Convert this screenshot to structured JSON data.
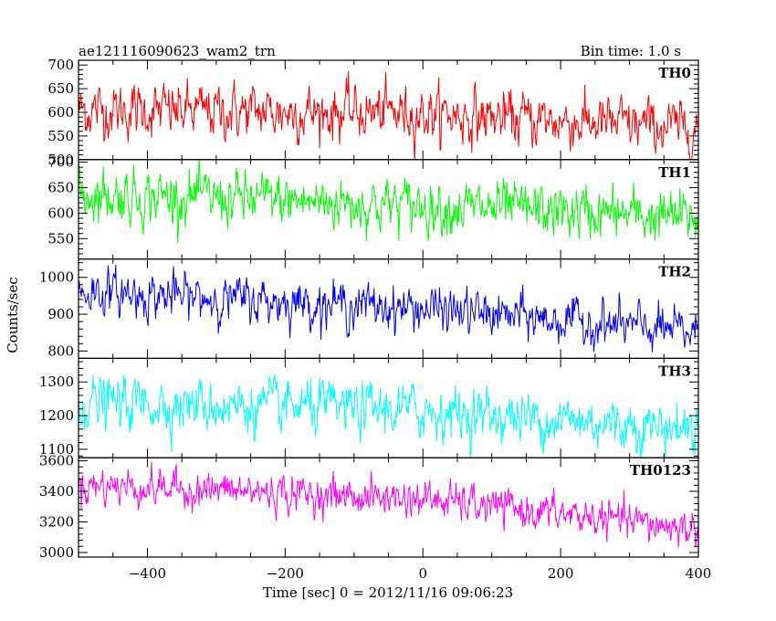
{
  "chart_data": {
    "type": "line",
    "title": "ae121116090623_wam2_trn",
    "subtitle": "Bin time: 1.0 s",
    "xlabel": "Time [sec] 0 = 2012/11/16 09:06:23",
    "ylabel": "Counts/sec",
    "xlim": [
      -500,
      400
    ],
    "xticks": [
      -400,
      -200,
      0,
      200,
      400
    ],
    "x_start": -500,
    "x_end": 400,
    "x_step": 1,
    "panels": [
      {
        "name": "TH0",
        "color": "#ff0000",
        "ylim": [
          500,
          710
        ],
        "yticks": [
          500,
          550,
          600,
          650,
          700
        ],
        "trend": [
          {
            "x": -500,
            "y": 605
          },
          {
            "x": 0,
            "y": 598
          },
          {
            "x": 400,
            "y": 565
          }
        ],
        "noise_sd": 28
      },
      {
        "name": "TH1",
        "color": "#00ff00",
        "ylim": [
          510,
          705
        ],
        "yticks": [
          550,
          600,
          650,
          700
        ],
        "trend": [
          {
            "x": -500,
            "y": 638
          },
          {
            "x": 0,
            "y": 615
          },
          {
            "x": 400,
            "y": 590
          }
        ],
        "noise_sd": 26
      },
      {
        "name": "TH2",
        "color": "#0000ff",
        "ylim": [
          780,
          1050
        ],
        "yticks": [
          800,
          900,
          1000
        ],
        "trend": [
          {
            "x": -500,
            "y": 962
          },
          {
            "x": 0,
            "y": 915
          },
          {
            "x": 400,
            "y": 850
          }
        ],
        "noise_sd": 30
      },
      {
        "name": "TH3",
        "color": "#00ffff",
        "ylim": [
          1075,
          1370
        ],
        "yticks": [
          1100,
          1200,
          1300
        ],
        "trend": [
          {
            "x": -500,
            "y": 1240
          },
          {
            "x": 0,
            "y": 1215
          },
          {
            "x": 400,
            "y": 1160
          }
        ],
        "noise_sd": 38
      },
      {
        "name": "TH0123",
        "color": "#ff00ff",
        "ylim": [
          2970,
          3620
        ],
        "yticks": [
          3000,
          3200,
          3400,
          3600
        ],
        "trend": [
          {
            "x": -500,
            "y": 3445
          },
          {
            "x": 0,
            "y": 3350
          },
          {
            "x": 400,
            "y": 3150
          }
        ],
        "noise_sd": 60
      }
    ],
    "grid": false,
    "legend": "panel labels top-right"
  }
}
